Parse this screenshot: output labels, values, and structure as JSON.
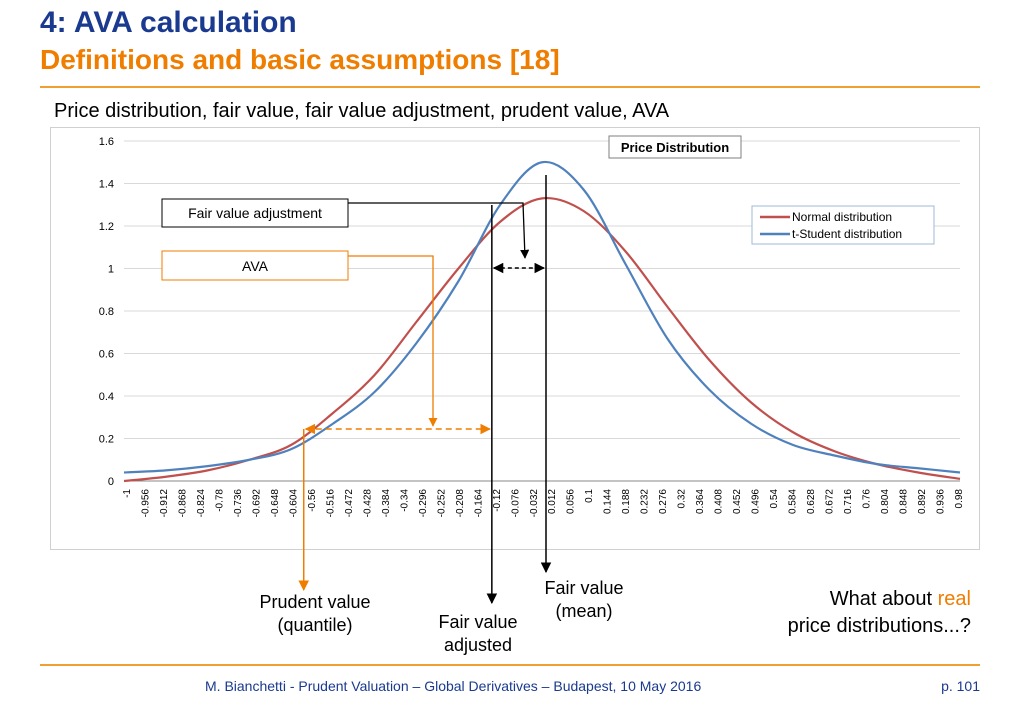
{
  "slide": {
    "title": "4: AVA calculation",
    "subtitle": "Definitions and basic assumptions [18]",
    "heading": "Price distribution, fair value, fair value adjustment, prudent value, AVA",
    "footer": "M. Bianchetti - Prudent Valuation – Global Derivatives – Budapest, 10 May 2016",
    "page": "p. 101"
  },
  "annotations": {
    "fair_value_adjustment": "Fair value adjustment",
    "ava": "AVA",
    "prudent_value_1": "Prudent value",
    "prudent_value_2": "(quantile)",
    "fair_value_adjusted_1": "Fair value",
    "fair_value_adjusted_2": "adjusted",
    "fair_value_mean_1": "Fair value",
    "fair_value_mean_2": "(mean)",
    "question_1": "What about ",
    "question_real": "real",
    "question_2": "price distributions...?"
  },
  "colors": {
    "normal": "#c0504d",
    "student": "#4f81bd",
    "arrow_orange": "#ef7d00",
    "title_blue": "#1a3a8f"
  },
  "chart_data": {
    "type": "line",
    "title": "Price Distribution",
    "ylim": [
      0,
      1.6
    ],
    "yticks": [
      "0",
      "0.2",
      "0.4",
      "0.6",
      "0.8",
      "1",
      "1.2",
      "1.4",
      "1.6"
    ],
    "xticks": [
      "-1",
      "-0.956",
      "-0.912",
      "-0.868",
      "-0.824",
      "-0.78",
      "-0.736",
      "-0.692",
      "-0.648",
      "-0.604",
      "-0.56",
      "-0.516",
      "-0.472",
      "-0.428",
      "-0.384",
      "-0.34",
      "-0.296",
      "-0.252",
      "-0.208",
      "-0.164",
      "-0.12",
      "-0.076",
      "-0.032",
      "0.012",
      "0.056",
      "0.1",
      "0.144",
      "0.188",
      "0.232",
      "0.276",
      "0.32",
      "0.364",
      "0.408",
      "0.452",
      "0.496",
      "0.54",
      "0.584",
      "0.628",
      "0.672",
      "0.716",
      "0.76",
      "0.804",
      "0.848",
      "0.892",
      "0.936",
      "0.98"
    ],
    "grid": true,
    "legend_position": "top-right",
    "series": [
      {
        "name": "Normal distribution",
        "color": "#c0504d",
        "x": [
          -1,
          -0.9,
          -0.8,
          -0.7,
          -0.6,
          -0.5,
          -0.4,
          -0.3,
          -0.2,
          -0.1,
          0,
          0.1,
          0.2,
          0.3,
          0.4,
          0.5,
          0.6,
          0.7,
          0.8,
          0.9,
          1
        ],
        "values": [
          0.0,
          0.02,
          0.05,
          0.1,
          0.17,
          0.32,
          0.5,
          0.75,
          1.0,
          1.22,
          1.33,
          1.27,
          1.08,
          0.82,
          0.57,
          0.37,
          0.23,
          0.14,
          0.08,
          0.04,
          0.01
        ]
      },
      {
        "name": "t-Student distribution",
        "color": "#4f81bd",
        "x": [
          -1,
          -0.9,
          -0.8,
          -0.7,
          -0.6,
          -0.5,
          -0.4,
          -0.3,
          -0.2,
          -0.1,
          0,
          0.1,
          0.2,
          0.3,
          0.4,
          0.5,
          0.6,
          0.7,
          0.8,
          0.9,
          1
        ],
        "values": [
          0.04,
          0.05,
          0.07,
          0.1,
          0.15,
          0.27,
          0.42,
          0.65,
          0.94,
          1.3,
          1.5,
          1.37,
          1.02,
          0.67,
          0.43,
          0.27,
          0.17,
          0.12,
          0.08,
          0.06,
          0.04
        ]
      }
    ],
    "markers": {
      "prudent_value_x": -0.57,
      "fair_value_adjusted_x": -0.12,
      "fair_value_mean_x": 0.0
    }
  }
}
